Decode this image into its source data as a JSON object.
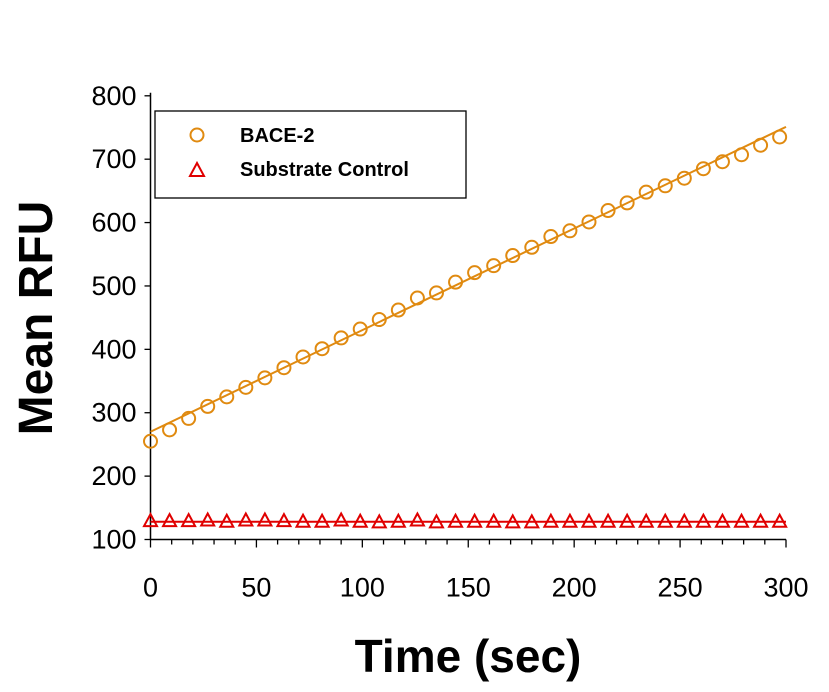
{
  "chart_data": {
    "type": "scatter",
    "title": "",
    "xlabel": "Time (sec)",
    "ylabel": "Mean RFU",
    "xlim": [
      0,
      300
    ],
    "ylim": [
      100,
      800
    ],
    "xticks": [
      "0",
      "50",
      "100",
      "150",
      "200",
      "250",
      "300"
    ],
    "yticks": [
      "100",
      "200",
      "300",
      "400",
      "500",
      "600",
      "700",
      "800"
    ],
    "grid": false,
    "legend_position": "top-left",
    "x": [
      0,
      9,
      18,
      27,
      36,
      45,
      54,
      63,
      72,
      81,
      90,
      99,
      108,
      117,
      126,
      135,
      144,
      153,
      162,
      171,
      180,
      189,
      198,
      207,
      216,
      225,
      234,
      243,
      252,
      261,
      270,
      279,
      288,
      297
    ],
    "series": [
      {
        "name": "BACE-2",
        "marker": "circle",
        "color": "#E08A10",
        "values": [
          255,
          273,
          291,
          310,
          325,
          340,
          355,
          371,
          388,
          401,
          418,
          432,
          447,
          462,
          481,
          489,
          506,
          521,
          532,
          548,
          561,
          578,
          587,
          601,
          619,
          631,
          648,
          658,
          670,
          685,
          696,
          707,
          722,
          735
        ],
        "fit_line": [
          270,
          751
        ]
      },
      {
        "name": "Substrate Control",
        "marker": "triangle",
        "color": "#E00000",
        "values": [
          129,
          129,
          129,
          130,
          128,
          130,
          130,
          129,
          128,
          128,
          130,
          128,
          127,
          128,
          130,
          127,
          128,
          128,
          128,
          127,
          127,
          128,
          128,
          128,
          128,
          128,
          128,
          128,
          128,
          128,
          128,
          128,
          128,
          128
        ],
        "fit_line": [
          128,
          128
        ]
      }
    ]
  }
}
